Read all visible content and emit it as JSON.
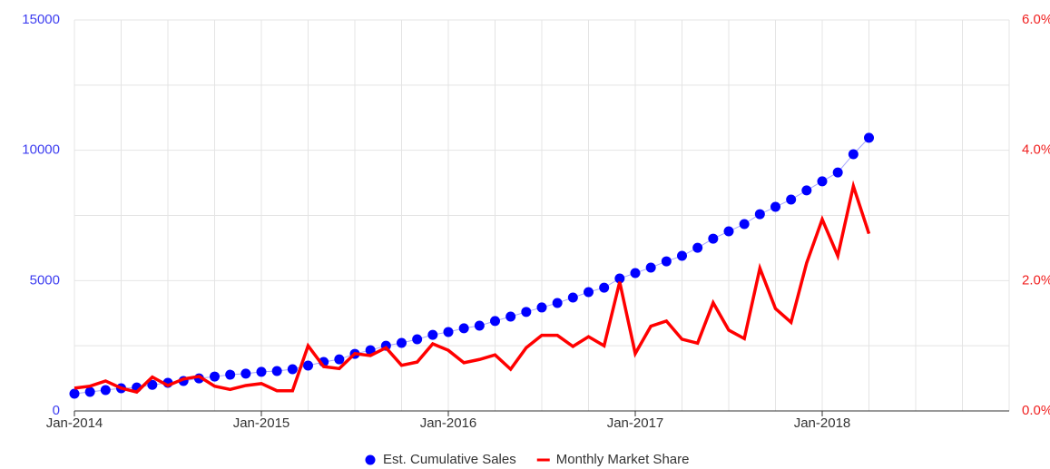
{
  "chart_data": {
    "type": "line",
    "x": [
      0,
      1,
      2,
      3,
      4,
      5,
      6,
      7,
      8,
      9,
      10,
      11,
      12,
      13,
      14,
      15,
      16,
      17,
      18,
      19,
      20,
      21,
      22,
      23,
      24,
      25,
      26,
      27,
      28,
      29,
      30,
      31,
      32,
      33,
      34,
      35,
      36,
      37,
      38,
      39,
      40,
      41,
      42,
      43,
      44,
      45,
      46,
      47,
      48,
      49,
      50,
      51
    ],
    "xlim": [
      0,
      60
    ],
    "xticks": [
      {
        "value": 0,
        "label": "Jan-2014"
      },
      {
        "value": 12,
        "label": "Jan-2015"
      },
      {
        "value": 24,
        "label": "Jan-2016"
      },
      {
        "value": 36,
        "label": "Jan-2017"
      },
      {
        "value": 48,
        "label": "Jan-2018"
      }
    ],
    "xminor": [
      3,
      6,
      9,
      15,
      18,
      21,
      27,
      30,
      33,
      39,
      42,
      45,
      51,
      54,
      57,
      60
    ],
    "ylim": [
      0,
      15000
    ],
    "yticks": [
      0,
      5000,
      10000,
      15000
    ],
    "yminor": [
      2500,
      7500,
      12500
    ],
    "y2lim": [
      0,
      6
    ],
    "y2ticks": [
      {
        "value": 0,
        "label": "0.0%"
      },
      {
        "value": 2,
        "label": "2.0%"
      },
      {
        "value": 4,
        "label": "4.0%"
      },
      {
        "value": 6,
        "label": "6.0%"
      }
    ],
    "grid": true,
    "legend": "bottom",
    "series": [
      {
        "name": "Est. Cumulative Sales",
        "color": "#0000ff",
        "marker": "dot",
        "values": [
          660,
          730,
          800,
          870,
          900,
          1000,
          1080,
          1150,
          1250,
          1320,
          1390,
          1430,
          1500,
          1530,
          1600,
          1740,
          1880,
          1980,
          2190,
          2330,
          2500,
          2610,
          2750,
          2920,
          3030,
          3170,
          3270,
          3450,
          3620,
          3800,
          3970,
          4140,
          4350,
          4560,
          4730,
          5080,
          5290,
          5500,
          5740,
          5950,
          6260,
          6610,
          6890,
          7170,
          7550,
          7830,
          8110,
          8460,
          8810,
          9150,
          9850,
          10480
        ]
      },
      {
        "name": "Monthly Market Share",
        "color": "#ff0000",
        "axis": "y2",
        "values": [
          0.35,
          0.38,
          0.46,
          0.35,
          0.29,
          0.52,
          0.39,
          0.49,
          0.53,
          0.38,
          0.33,
          0.39,
          0.42,
          0.31,
          0.31,
          1.0,
          0.68,
          0.65,
          0.88,
          0.85,
          0.97,
          0.7,
          0.75,
          1.03,
          0.93,
          0.74,
          0.79,
          0.86,
          0.64,
          0.97,
          1.16,
          1.16,
          0.99,
          1.14,
          1.0,
          1.98,
          0.88,
          1.3,
          1.38,
          1.1,
          1.04,
          1.66,
          1.24,
          1.11,
          2.19,
          1.57,
          1.36,
          2.27,
          2.94,
          2.38,
          3.45,
          2.72
        ]
      }
    ]
  }
}
